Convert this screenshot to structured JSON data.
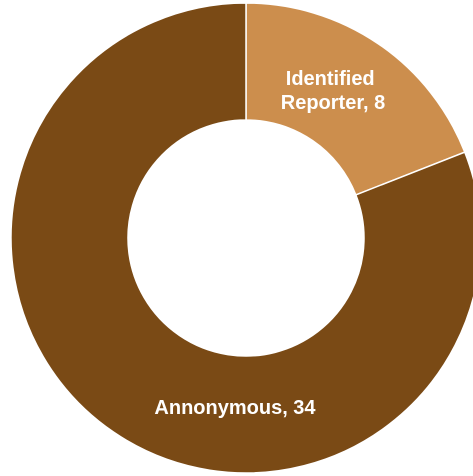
{
  "chart_data": {
    "type": "pie",
    "variant": "donut",
    "slices": [
      {
        "label": "Identified Reporter",
        "value": 8,
        "color": "#CC8E4D"
      },
      {
        "label": "Annonymous",
        "value": 34,
        "color": "#7A4A15"
      }
    ],
    "data_labels": [
      {
        "lines": [
          "Identified",
          "Reporter, 8"
        ]
      },
      {
        "lines": [
          "Annonymous, 34"
        ]
      }
    ],
    "legend": "none",
    "title": ""
  }
}
